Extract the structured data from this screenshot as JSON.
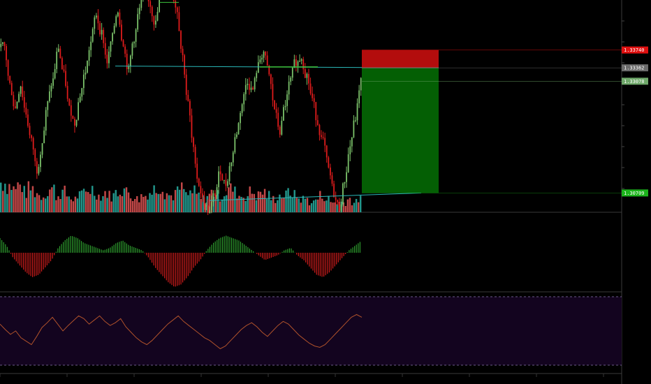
{
  "chart_data": {
    "type": "candlestick",
    "title": "",
    "price_axis": {
      "visible_range": [
        1.303,
        1.348
      ],
      "labels": [
        {
          "price": 1.3374,
          "text": "1.33740",
          "color": "#e01010"
        },
        {
          "price": 1.33362,
          "text": "1.33362",
          "color": "#6b6b6b"
        },
        {
          "price": 1.33078,
          "text": "1.33078",
          "color": "#6fa86a"
        },
        {
          "price": 1.30709,
          "text": "1.30709",
          "color": "#1bb31b"
        }
      ]
    },
    "close_series": [
      1.338,
      1.33,
      1.325,
      1.33,
      1.324,
      1.318,
      1.312,
      1.318,
      1.326,
      1.331,
      1.338,
      1.332,
      1.325,
      1.322,
      1.328,
      1.333,
      1.339,
      1.345,
      1.341,
      1.335,
      1.34,
      1.346,
      1.339,
      1.333,
      1.34,
      1.346,
      1.351,
      1.347,
      1.343,
      1.349,
      1.355,
      1.35,
      1.346,
      1.336,
      1.326,
      1.316,
      1.309,
      1.305,
      1.303,
      1.307,
      1.312,
      1.309,
      1.314,
      1.32,
      1.326,
      1.331,
      1.329,
      1.334,
      1.337,
      1.332,
      1.325,
      1.32,
      1.326,
      1.331,
      1.335,
      1.336,
      1.332,
      1.327,
      1.322,
      1.318,
      1.312,
      1.307,
      1.304,
      1.31,
      1.317,
      1.323,
      1.331
    ],
    "close_series_note_units": "price",
    "volume_series": [
      9,
      8,
      7,
      8,
      6,
      7,
      6,
      5,
      6,
      7,
      5,
      6,
      5,
      4,
      5,
      6,
      7,
      6,
      5,
      6,
      5,
      6,
      7,
      6,
      5,
      4,
      5,
      6,
      7,
      8,
      6,
      5,
      6,
      7,
      5,
      6,
      5,
      4,
      5,
      6,
      5,
      6,
      7,
      6,
      5,
      5,
      6,
      5,
      6,
      5,
      4,
      5,
      5,
      6,
      5,
      4,
      4,
      3,
      4,
      5,
      4,
      3,
      3,
      3,
      4,
      3,
      4
    ],
    "histogram_series": [
      6,
      3,
      -2,
      -5,
      -8,
      -10,
      -9,
      -6,
      -3,
      2,
      5,
      7,
      6,
      4,
      3,
      2,
      1,
      2,
      4,
      5,
      3,
      2,
      1,
      -2,
      -6,
      -9,
      -12,
      -14,
      -13,
      -10,
      -6,
      -3,
      1,
      4,
      6,
      7,
      6,
      5,
      3,
      1,
      -1,
      -3,
      -2,
      -1,
      1,
      2,
      -1,
      -3,
      -6,
      -9,
      -10,
      -8,
      -5,
      -2,
      1,
      3,
      5
    ],
    "oscillator_series": [
      60,
      52,
      45,
      50,
      40,
      35,
      30,
      42,
      55,
      62,
      70,
      60,
      50,
      58,
      65,
      72,
      68,
      60,
      66,
      72,
      64,
      58,
      62,
      68,
      56,
      48,
      40,
      34,
      30,
      36,
      44,
      52,
      60,
      66,
      72,
      64,
      58,
      52,
      46,
      40,
      36,
      30,
      24,
      28,
      36,
      44,
      52,
      58,
      62,
      56,
      48,
      42,
      50,
      58,
      64,
      60,
      52,
      44,
      38,
      32,
      28,
      26,
      30,
      38,
      46,
      54,
      62,
      70,
      74,
      70
    ],
    "oscillator_bounds": [
      0,
      100
    ],
    "position_box": {
      "type": "short",
      "entry": 1.33362,
      "stop": 1.3374,
      "target": 1.30709
    },
    "trend_lines": [
      {
        "color": "#2ab8b8",
        "from_price": 1.334,
        "to_price": 1.33362
      },
      {
        "color": "#2ab8b8",
        "from_price": 1.3055,
        "to_price": 1.30709
      },
      {
        "color": "#3ec43e",
        "from_price": 1.3475,
        "to_price": 1.3475
      }
    ],
    "colors": {
      "up": "#7cc36b",
      "down": "#e01c1c",
      "volume_up": "#26a69a",
      "volume_down": "#d85050",
      "hist_pos": "#2e9e2e",
      "hist_neg": "#d11c1c",
      "oscillator": "#b0522b",
      "oscillator_bg": "#13041f",
      "stop_box": "#b30d0d",
      "target_box": "#045f04"
    },
    "grid": true
  }
}
